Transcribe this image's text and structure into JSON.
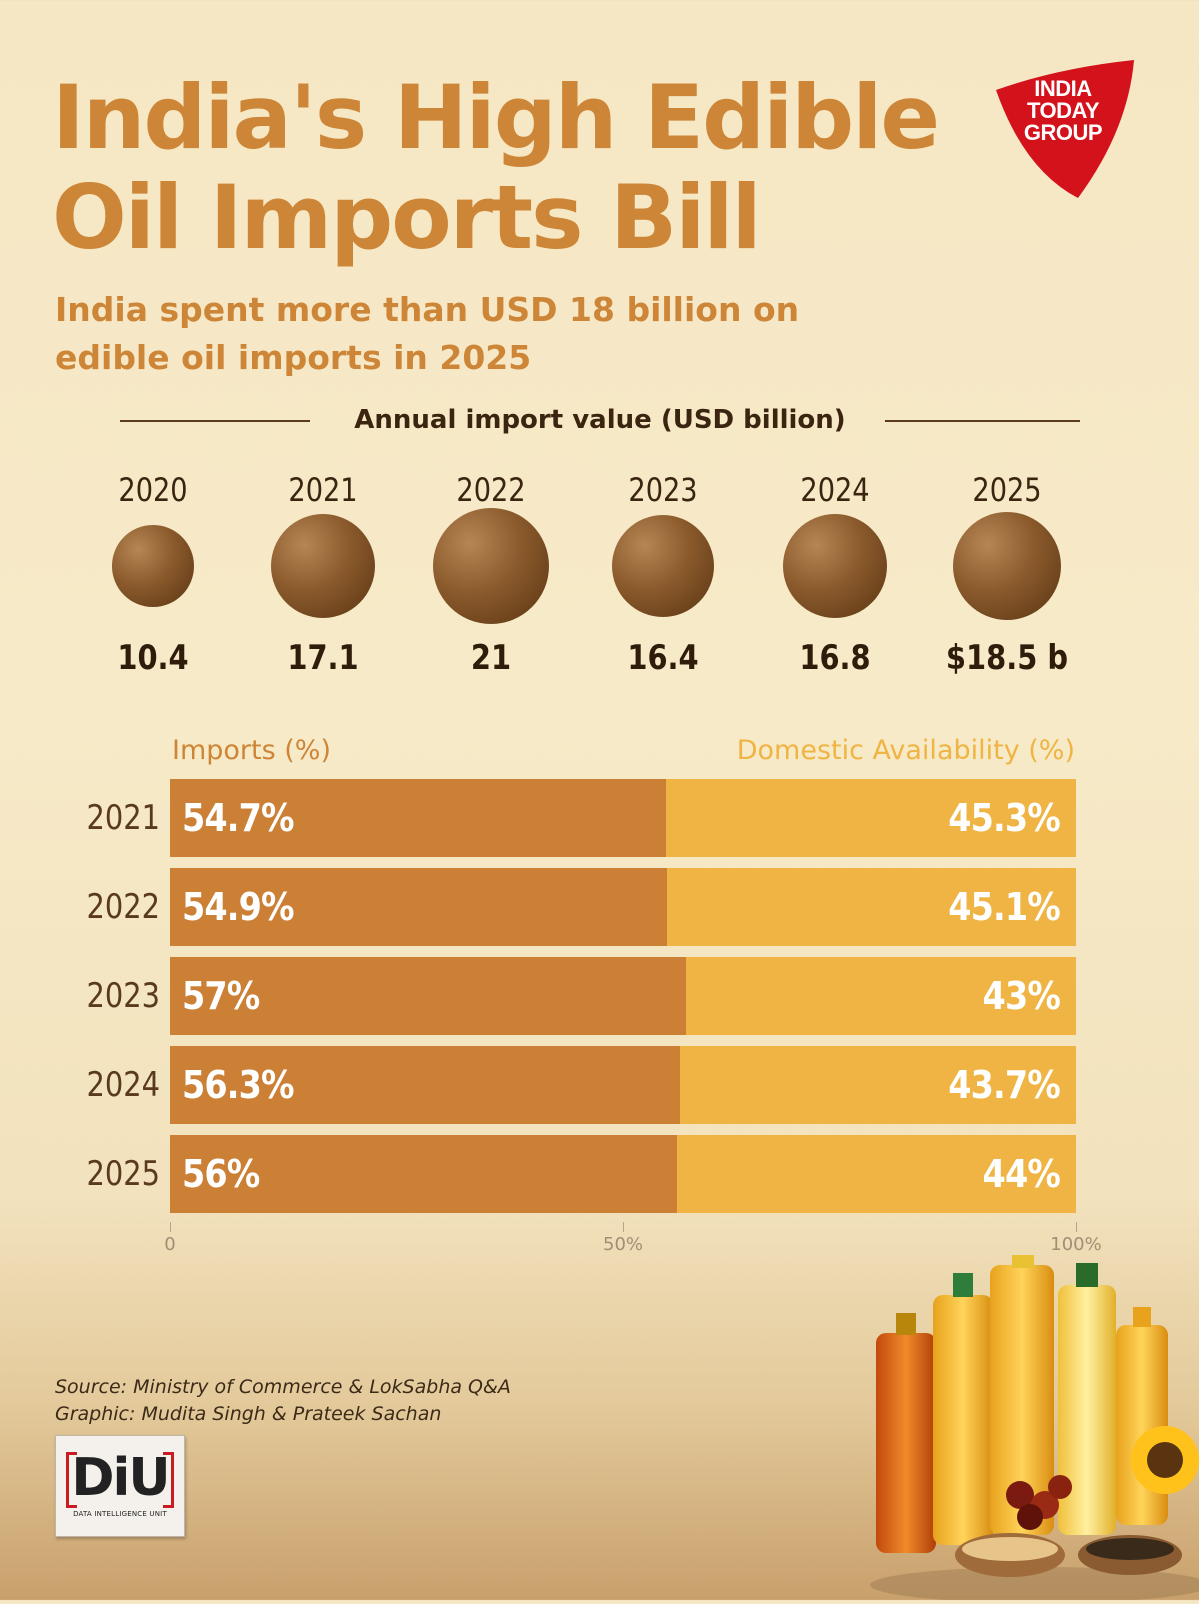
{
  "header": {
    "title": "India's High Edible Oil Imports Bill",
    "subtitle": "India spent more than USD 18 billion on edible oil imports in 2025",
    "logo_text_line1": "INDIA",
    "logo_text_line2": "TODAY",
    "logo_text_line3": "GROUP"
  },
  "colors": {
    "title": "#cd8637",
    "imports": "#cb8036",
    "domestic": "#efb443",
    "bubble": "#8a5a2c",
    "logo_red": "#d4121b"
  },
  "chart_data": [
    {
      "type": "scatter",
      "title": "Annual import value (USD billion)",
      "categories": [
        "2020",
        "2021",
        "2022",
        "2023",
        "2024",
        "2025"
      ],
      "values": [
        10.4,
        17.1,
        21,
        16.4,
        16.8,
        18.5
      ],
      "value_labels": [
        "10.4",
        "17.1",
        "21",
        "16.4",
        "16.8",
        "$18.5 b"
      ],
      "encoding": "bubble area"
    },
    {
      "type": "bar",
      "orientation": "horizontal-stacked",
      "categories": [
        "2021",
        "2022",
        "2023",
        "2024",
        "2025"
      ],
      "series": [
        {
          "name": "Imports (%)",
          "values": [
            54.7,
            54.9,
            57,
            56.3,
            56
          ],
          "labels": [
            "54.7%",
            "54.9%",
            "57%",
            "56.3%",
            "56%"
          ]
        },
        {
          "name": "Domestic Availability (%)",
          "values": [
            45.3,
            45.1,
            43,
            43.7,
            44
          ],
          "labels": [
            "45.3%",
            "45.1%",
            "43%",
            "43.7%",
            "44%"
          ]
        }
      ],
      "xlim": [
        0,
        100
      ],
      "x_ticks": [
        "0",
        "50%",
        "100%"
      ]
    }
  ],
  "footer": {
    "source": "Source: Ministry of Commerce & LokSabha Q&A",
    "graphic": "Graphic: Mudita Singh & Prateek Sachan",
    "diu_mark": "DiU",
    "diu_sub": "DATA INTELLIGENCE UNIT"
  },
  "icons": [
    "india-today-logo",
    "diu-logo",
    "oil-bottles-illustration"
  ]
}
